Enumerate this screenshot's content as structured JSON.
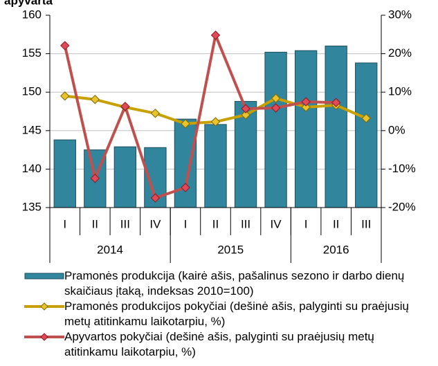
{
  "chart_data": {
    "type": "bar",
    "title": "apyvarta",
    "categories": [
      "I",
      "II",
      "III",
      "IV",
      "I",
      "II",
      "III",
      "IV",
      "I",
      "II",
      "III"
    ],
    "groups": [
      {
        "label": "2014",
        "span": 4
      },
      {
        "label": "2015",
        "span": 4
      },
      {
        "label": "2016",
        "span": 3
      }
    ],
    "series": [
      {
        "name": "Pramonės produkcija (kairė ašis, pašalinus sezono ir darbo dienų skaičiaus įtaką, indeksas 2010=100)",
        "mark": "bar",
        "color": "#31859c",
        "values": [
          143.8,
          142.5,
          142.9,
          142.8,
          146.5,
          145.8,
          148.8,
          155.2,
          155.4,
          156.0,
          153.8
        ]
      },
      {
        "name": "Pramonės produkcijos pokyčiai (dešinė ašis, palyginti su praėjusių metų atitinkamu laikotarpiu, %)",
        "mark": "line",
        "axis": "y2",
        "color": "#c8a000",
        "values": [
          9.0,
          8.1,
          6.1,
          4.5,
          1.8,
          2.3,
          4.1,
          8.4,
          6.1,
          6.6,
          3.2
        ]
      },
      {
        "name": "Apyvartos pokyčiai (dešinė ašis, palyginti su praėjusių metų atitinkamu laikotarpiu, %)",
        "mark": "line",
        "axis": "y2",
        "color": "#c0504d",
        "values": [
          22.1,
          -12.4,
          6.3,
          -17.5,
          -14.8,
          24.8,
          5.7,
          5.9,
          7.5,
          7.3,
          null
        ]
      }
    ],
    "ylim": [
      135,
      160
    ],
    "yticks": [
      135,
      140,
      145,
      150,
      155,
      160
    ],
    "y2lim": [
      -20,
      30
    ],
    "y2ticks": [
      {
        "value": -20,
        "label": "-20%"
      },
      {
        "value": -10,
        "label": "-10%"
      },
      {
        "value": 0,
        "label": "0%"
      },
      {
        "value": 10,
        "label": "10%"
      },
      {
        "value": 20,
        "label": "20%"
      },
      {
        "value": 30,
        "label": "30%"
      }
    ],
    "grid": true
  }
}
